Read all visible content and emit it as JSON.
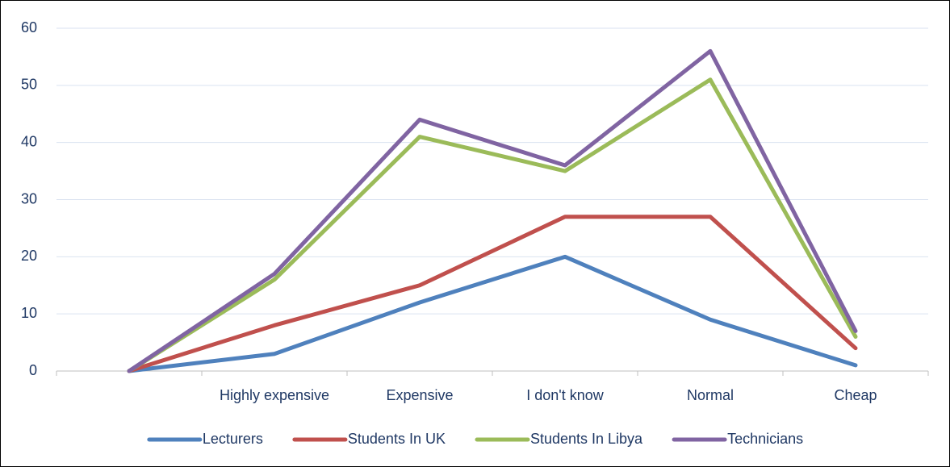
{
  "chart_data": {
    "type": "line",
    "categories": [
      null,
      "Highly expensive",
      "Expensive",
      "I don't know",
      "Normal",
      "Cheap"
    ],
    "series": [
      {
        "name": "Lecturers",
        "color": "#4f81bd",
        "values": [
          0,
          3,
          12,
          20,
          9,
          1
        ]
      },
      {
        "name": "Students In UK",
        "color": "#c0504d",
        "values": [
          0,
          8,
          15,
          27,
          27,
          4
        ]
      },
      {
        "name": "Students In Libya",
        "color": "#9bbb59",
        "values": [
          0,
          16,
          41,
          35,
          51,
          6
        ]
      },
      {
        "name": "Technicians",
        "color": "#8064a2",
        "values": [
          0,
          17,
          44,
          36,
          56,
          7
        ]
      }
    ],
    "ylim": [
      0,
      60
    ],
    "yticks": [
      0,
      10,
      20,
      30,
      40,
      50,
      60
    ],
    "grid": true,
    "legend": "bottom"
  }
}
